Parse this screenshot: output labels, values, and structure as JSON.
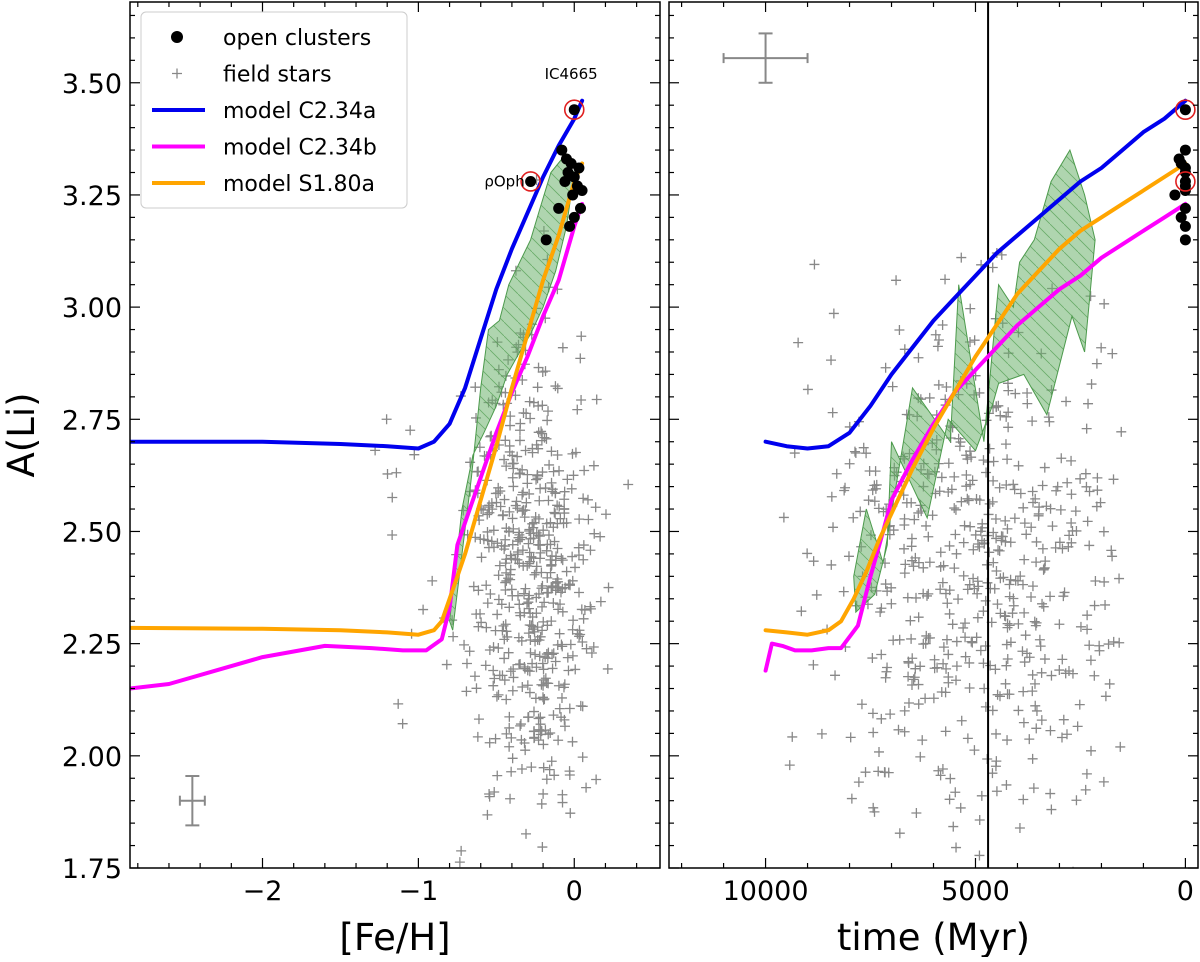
{
  "chart_data": [
    {
      "type": "scatter",
      "panel": "left",
      "xlabel": "[Fe/H]",
      "ylabel": "A(Li)",
      "xlim": [
        -2.85,
        0.55
      ],
      "ylim": [
        1.75,
        3.68
      ],
      "x_ticks": [
        -2,
        -1,
        0
      ],
      "x_tick_labels": [
        "−2",
        "−1",
        "0"
      ],
      "y_ticks": [
        1.75,
        2.0,
        2.25,
        2.5,
        2.75,
        3.0,
        3.25,
        3.5
      ],
      "y_tick_labels": [
        "1.75",
        "2.00",
        "2.25",
        "2.50",
        "2.75",
        "3.00",
        "3.25",
        "3.50"
      ],
      "legend": {
        "position": "top-left",
        "entries": [
          {
            "label": "open clusters",
            "marker": "dot",
            "color": "#000000"
          },
          {
            "label": "field stars",
            "marker": "plus",
            "color": "#888888"
          },
          {
            "label": "model C2.34a",
            "marker": "line",
            "color": "#0000ee"
          },
          {
            "label": "model C2.34b",
            "marker": "line",
            "color": "#ff00ff"
          },
          {
            "label": "model S1.80a",
            "marker": "line",
            "color": "#ffa500"
          }
        ]
      },
      "annotations": [
        {
          "text": "IC4665",
          "x": -0.02,
          "y": 3.52
        },
        {
          "text": "ρOph",
          "x": -0.35,
          "y": 3.28
        }
      ],
      "series": [
        {
          "name": "model C2.34a",
          "color": "#0000ee",
          "x": [
            -2.85,
            -2.0,
            -1.5,
            -1.2,
            -1.0,
            -0.9,
            -0.8,
            -0.7,
            -0.6,
            -0.5,
            -0.4,
            -0.3,
            -0.2,
            -0.1,
            0.0,
            0.05
          ],
          "y": [
            2.7,
            2.7,
            2.695,
            2.69,
            2.685,
            2.7,
            2.74,
            2.82,
            2.93,
            3.04,
            3.13,
            3.21,
            3.29,
            3.36,
            3.42,
            3.46
          ]
        },
        {
          "name": "model C2.34b",
          "color": "#ff00ff",
          "x": [
            -2.85,
            -2.6,
            -2.3,
            -2.0,
            -1.6,
            -1.3,
            -1.1,
            -0.95,
            -0.85,
            -0.8,
            -0.75,
            -0.7,
            -0.6,
            -0.5,
            -0.4,
            -0.3,
            -0.2,
            -0.1,
            0.0,
            0.05
          ],
          "y": [
            2.15,
            2.16,
            2.19,
            2.22,
            2.245,
            2.24,
            2.235,
            2.235,
            2.26,
            2.33,
            2.47,
            2.52,
            2.62,
            2.72,
            2.81,
            2.89,
            2.98,
            3.06,
            3.18,
            3.23
          ]
        },
        {
          "name": "model S1.80a",
          "color": "#ffa500",
          "x": [
            -2.85,
            -2.0,
            -1.5,
            -1.2,
            -1.0,
            -0.9,
            -0.85,
            -0.8,
            -0.75,
            -0.7,
            -0.6,
            -0.5,
            -0.4,
            -0.3,
            -0.2,
            -0.1,
            0.0,
            0.05
          ],
          "y": [
            2.285,
            2.283,
            2.28,
            2.275,
            2.27,
            2.28,
            2.3,
            2.35,
            2.4,
            2.45,
            2.57,
            2.69,
            2.82,
            2.94,
            3.06,
            3.16,
            3.28,
            3.32
          ]
        },
        {
          "name": "open clusters",
          "color": "#000000",
          "x": [
            0.0,
            -0.28,
            -0.08,
            -0.05,
            -0.02,
            0.03,
            -0.04,
            0.0,
            0.02,
            -0.01,
            -0.06,
            0.04,
            0.0,
            -0.03,
            -0.18,
            -0.1,
            0.05
          ],
          "y": [
            3.44,
            3.28,
            3.35,
            3.33,
            3.32,
            3.31,
            3.3,
            3.29,
            3.27,
            3.25,
            3.28,
            3.22,
            3.2,
            3.18,
            3.15,
            3.22,
            3.26
          ]
        },
        {
          "name": "highlighted",
          "x": [
            0.0,
            -0.28
          ],
          "y": [
            3.44,
            3.28
          ]
        },
        {
          "name": "green band",
          "x": [
            -0.78,
            -0.72,
            -0.66,
            -0.6,
            -0.55,
            -0.48,
            -0.42,
            -0.35,
            -0.28,
            -0.22,
            -0.15,
            -0.08,
            0.0,
            -0.05,
            -0.12,
            -0.2,
            -0.28,
            -0.35,
            -0.43,
            -0.5,
            -0.58,
            -0.65,
            -0.72,
            -0.8
          ],
          "y": [
            2.28,
            2.45,
            2.62,
            2.82,
            2.95,
            2.97,
            3.05,
            3.1,
            3.15,
            3.22,
            3.3,
            3.33,
            3.3,
            3.18,
            3.08,
            3.0,
            2.94,
            2.9,
            2.85,
            2.78,
            2.72,
            2.67,
            2.55,
            2.3
          ]
        },
        {
          "name": "error bar",
          "x": [
            -2.45
          ],
          "y": [
            1.9
          ],
          "xerr": 0.08,
          "yerr": 0.055
        }
      ]
    },
    {
      "type": "scatter",
      "panel": "right",
      "xlabel": "time (Myr)",
      "xlim": [
        12300,
        -300
      ],
      "ylim": [
        1.75,
        3.68
      ],
      "x_ticks": [
        10000,
        5000,
        0
      ],
      "x_tick_labels": [
        "10000",
        "5000",
        "0"
      ],
      "vline": 4700,
      "series": [
        {
          "name": "model C2.34a",
          "color": "#0000ee",
          "x": [
            10000,
            9500,
            9000,
            8500,
            8000,
            7500,
            7000,
            6500,
            6000,
            5500,
            5000,
            4500,
            4000,
            3500,
            3000,
            2500,
            2000,
            1500,
            1000,
            500,
            0
          ],
          "y": [
            2.7,
            2.69,
            2.685,
            2.69,
            2.72,
            2.78,
            2.85,
            2.91,
            2.97,
            3.02,
            3.07,
            3.12,
            3.16,
            3.2,
            3.24,
            3.28,
            3.31,
            3.35,
            3.39,
            3.42,
            3.46
          ]
        },
        {
          "name": "model C2.34b",
          "color": "#ff00ff",
          "x": [
            10000,
            9850,
            9600,
            9300,
            8900,
            8500,
            8200,
            7800,
            7500,
            7200,
            7000,
            6500,
            6000,
            5500,
            5000,
            4500,
            4000,
            3500,
            3000,
            2500,
            2000,
            1500,
            1000,
            500,
            0
          ],
          "y": [
            2.19,
            2.25,
            2.245,
            2.235,
            2.235,
            2.24,
            2.24,
            2.29,
            2.4,
            2.5,
            2.57,
            2.66,
            2.74,
            2.81,
            2.86,
            2.91,
            2.96,
            3.0,
            3.04,
            3.07,
            3.11,
            3.14,
            3.17,
            3.2,
            3.23
          ]
        },
        {
          "name": "model S1.80a",
          "color": "#ffa500",
          "x": [
            10000,
            9500,
            9000,
            8500,
            8200,
            7900,
            7600,
            7300,
            7000,
            6500,
            6000,
            5500,
            5000,
            4500,
            4000,
            3500,
            3000,
            2500,
            2000,
            1500,
            1000,
            500,
            0
          ],
          "y": [
            2.28,
            2.275,
            2.27,
            2.28,
            2.3,
            2.35,
            2.41,
            2.48,
            2.54,
            2.64,
            2.73,
            2.81,
            2.89,
            2.96,
            3.03,
            3.08,
            3.13,
            3.17,
            3.2,
            3.23,
            3.26,
            3.29,
            3.32
          ]
        },
        {
          "name": "open clusters",
          "color": "#000000",
          "x": [
            0,
            0,
            0,
            250,
            150,
            100,
            0,
            0,
            0,
            0,
            100,
            0,
            0,
            0
          ],
          "y": [
            3.44,
            3.28,
            3.35,
            3.25,
            3.33,
            3.32,
            3.31,
            3.3,
            3.27,
            3.22,
            3.2,
            3.18,
            3.15,
            3.26
          ]
        },
        {
          "name": "highlighted",
          "x": [
            0,
            0
          ],
          "y": [
            3.44,
            3.28
          ]
        },
        {
          "name": "green band",
          "x": [
            7900,
            7600,
            7200,
            6500,
            5600,
            5400,
            4800,
            4450,
            4100,
            3950,
            3600,
            3200,
            2750,
            2400,
            2150,
            2400,
            2700,
            3300,
            3850,
            4450,
            4600,
            5000,
            5650,
            6150,
            7000,
            7100,
            7400,
            7850
          ],
          "y": [
            2.4,
            2.55,
            2.43,
            2.82,
            2.7,
            3.05,
            2.7,
            3.05,
            3.0,
            3.1,
            3.15,
            3.28,
            3.35,
            3.25,
            3.15,
            2.9,
            2.98,
            2.76,
            2.85,
            2.83,
            2.78,
            2.68,
            2.75,
            2.53,
            2.7,
            2.47,
            2.36,
            2.32
          ]
        },
        {
          "name": "error bar",
          "x": [
            10000
          ],
          "y": [
            3.555
          ],
          "xerr": 1000,
          "yerr": 0.055
        }
      ]
    }
  ]
}
